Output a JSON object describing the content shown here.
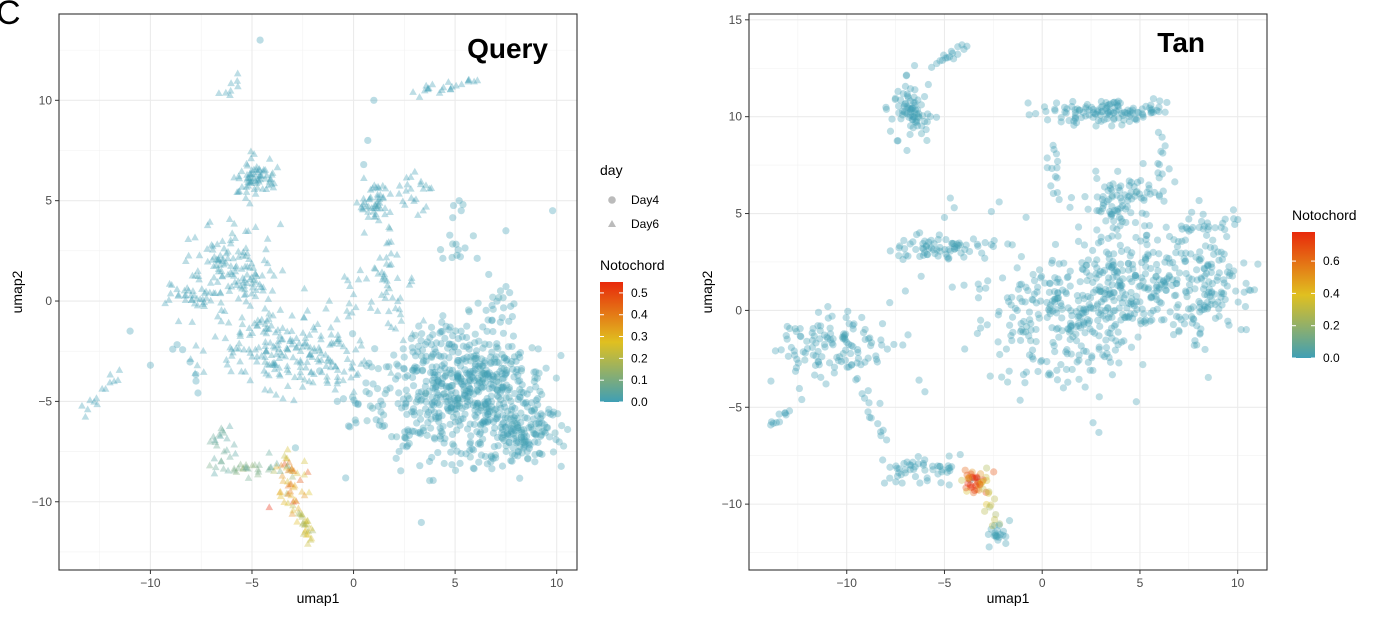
{
  "figure": {
    "panel_letter": "C"
  },
  "chart_data": [
    {
      "type": "scatter",
      "title": "Query",
      "xlabel": "umap1",
      "ylabel": "umap2",
      "xlim": [
        -14.5,
        11.0
      ],
      "ylim": [
        -13.4,
        14.3
      ],
      "xticks": [
        -10,
        -5,
        0,
        5,
        10
      ],
      "yticks": [
        -10,
        -5,
        0,
        5,
        10
      ],
      "grid": true,
      "shape_legend": {
        "title": "day",
        "entries": [
          {
            "label": "Day4",
            "shape": "circle"
          },
          {
            "label": "Day6",
            "shape": "triangle"
          }
        ]
      },
      "color_legend": {
        "title": "Notochord",
        "ticks": [
          0.0,
          0.1,
          0.2,
          0.3,
          0.4,
          0.5
        ],
        "tick_labels": [
          "0.0",
          "0.1",
          "0.2",
          "0.3",
          "0.4",
          "0.5"
        ],
        "range": [
          0,
          0.55
        ]
      },
      "colors": {
        "low": "#3f9fb5",
        "mid": "#e0c020",
        "high": "#e8290b"
      },
      "clusters": [
        {
          "cx": 4.6,
          "cy": -5.0,
          "sx": 2.2,
          "sy": 1.5,
          "n": 420,
          "shape": "circle",
          "value": 0.0
        },
        {
          "cx": 8.2,
          "cy": -6.5,
          "sx": 1.0,
          "sy": 0.8,
          "n": 150,
          "shape": "circle",
          "value": 0.0
        },
        {
          "cx": 6.8,
          "cy": -3.8,
          "sx": 1.3,
          "sy": 0.9,
          "n": 120,
          "shape": "circle",
          "value": 0.0
        },
        {
          "cx": 4.8,
          "cy": -2.5,
          "sx": 1.0,
          "sy": 0.8,
          "n": 70,
          "shape": "circle",
          "value": 0.0
        },
        {
          "cx": 7.0,
          "cy": -0.6,
          "sx": 0.6,
          "sy": 0.7,
          "n": 30,
          "shape": "circle",
          "value": 0.0
        },
        {
          "cx": 5.0,
          "cy": 3.0,
          "sx": 0.4,
          "sy": 1.2,
          "n": 15,
          "shape": "circle",
          "value": 0.0
        },
        {
          "cx": -3.8,
          "cy": -2.3,
          "sx": 1.6,
          "sy": 1.0,
          "n": 160,
          "shape": "triangle",
          "value": 0.0
        },
        {
          "cx": -1.3,
          "cy": -3.4,
          "sx": 1.1,
          "sy": 0.7,
          "n": 60,
          "shape": "triangle",
          "value": 0.0
        },
        {
          "cx": -6.0,
          "cy": 1.6,
          "sx": 1.2,
          "sy": 1.1,
          "n": 140,
          "shape": "triangle",
          "value": 0.0
        },
        {
          "cx": -8.0,
          "cy": 0.2,
          "sx": 0.5,
          "sy": 0.3,
          "n": 25,
          "shape": "triangle",
          "value": 0.0
        },
        {
          "cx": -4.8,
          "cy": 6.2,
          "sx": 0.5,
          "sy": 0.5,
          "n": 70,
          "shape": "triangle",
          "value": 0.0
        },
        {
          "cx": 1.0,
          "cy": 4.8,
          "sx": 0.35,
          "sy": 0.6,
          "n": 45,
          "shape": "triangle",
          "value": 0.0
        },
        {
          "cx": 1.5,
          "cy": 2.0,
          "sx": 0.4,
          "sy": 0.9,
          "n": 25,
          "shape": "triangle",
          "value": 0.0
        },
        {
          "cx": 0.2,
          "cy": 0.2,
          "sx": 0.5,
          "sy": 0.8,
          "n": 15,
          "shape": "triangle",
          "value": 0.0
        },
        {
          "cx": 2.8,
          "cy": 5.4,
          "sx": 0.5,
          "sy": 0.6,
          "n": 25,
          "shape": "triangle",
          "value": 0.0
        },
        {
          "cx": 2.2,
          "cy": -0.5,
          "sx": 0.5,
          "sy": 0.8,
          "n": 20,
          "shape": "triangle",
          "value": 0.0
        },
        {
          "cx": -3.1,
          "cy": -9.1,
          "sx": 0.5,
          "sy": 0.6,
          "n": 50,
          "shape": "triangle",
          "value": 0.3
        },
        {
          "cx": -5.0,
          "cy": -8.4,
          "sx": 0.7,
          "sy": 0.25,
          "n": 30,
          "shape": "triangle",
          "value": 0.08
        },
        {
          "cx": -6.5,
          "cy": -7.2,
          "sx": 0.4,
          "sy": 0.7,
          "n": 20,
          "shape": "triangle",
          "value": 0.05
        }
      ],
      "trails": [
        {
          "x0": -13.3,
          "y0": -5.6,
          "x1": -11.5,
          "y1": -3.5,
          "n": 14,
          "shape": "triangle"
        },
        {
          "x0": -2.6,
          "y0": -10.5,
          "x1": -2.1,
          "y1": -12.0,
          "n": 25,
          "shape": "triangle",
          "value": 0.25
        },
        {
          "x0": 3.0,
          "y0": 10.4,
          "x1": 6.0,
          "y1": 10.9,
          "n": 22,
          "shape": "triangle"
        },
        {
          "x0": -6.5,
          "y0": 10.0,
          "x1": -5.5,
          "y1": 11.3,
          "n": 8,
          "shape": "triangle"
        },
        {
          "x0": -8.5,
          "y0": -2.4,
          "x1": -7.5,
          "y1": -4.3,
          "n": 6,
          "shape": "circle"
        }
      ],
      "stragglers": [
        [
          1.0,
          10.0
        ],
        [
          0.7,
          8.0
        ],
        [
          0.5,
          6.8
        ],
        [
          9.8,
          4.5
        ],
        [
          7.5,
          3.5
        ],
        [
          -4.6,
          13.0
        ],
        [
          -8.9,
          -2.4
        ],
        [
          -11.0,
          -1.5
        ],
        [
          -10.0,
          -3.2
        ],
        [
          -0.8,
          -5.0
        ],
        [
          5.3,
          4.5
        ],
        [
          5.2,
          5.0
        ]
      ]
    },
    {
      "type": "scatter",
      "title": "Tan",
      "xlabel": "umap1",
      "ylabel": "umap2",
      "xlim": [
        -15.0,
        11.5
      ],
      "ylim": [
        -13.4,
        15.3
      ],
      "xticks": [
        -10,
        -5,
        0,
        5,
        10
      ],
      "yticks": [
        -10,
        -5,
        0,
        5,
        10,
        15
      ],
      "grid": true,
      "color_legend": {
        "title": "Notochord",
        "ticks": [
          0.0,
          0.2,
          0.4,
          0.6
        ],
        "tick_labels": [
          "0.0",
          "0.2",
          "0.4",
          "0.6"
        ],
        "range": [
          0,
          0.78
        ]
      },
      "colors": {
        "low": "#3f9fb5",
        "mid": "#e0c020",
        "high": "#e8290b"
      },
      "clusters": [
        {
          "cx": 1.2,
          "cy": -0.6,
          "sx": 2.0,
          "sy": 1.7,
          "n": 260,
          "shape": "circle",
          "value": 0.0
        },
        {
          "cx": 5.0,
          "cy": 1.5,
          "sx": 2.0,
          "sy": 1.2,
          "n": 260,
          "shape": "circle",
          "value": 0.0
        },
        {
          "cx": 8.6,
          "cy": 1.2,
          "sx": 0.8,
          "sy": 1.6,
          "n": 100,
          "shape": "circle",
          "value": 0.0
        },
        {
          "cx": 4.0,
          "cy": 5.6,
          "sx": 1.0,
          "sy": 0.8,
          "n": 90,
          "shape": "circle",
          "value": 0.0
        },
        {
          "cx": 2.6,
          "cy": 10.2,
          "sx": 1.6,
          "sy": 0.3,
          "n": 100,
          "shape": "circle",
          "value": 0.0
        },
        {
          "cx": -10.6,
          "cy": -1.8,
          "sx": 1.4,
          "sy": 0.9,
          "n": 120,
          "shape": "circle",
          "value": 0.0
        },
        {
          "cx": -6.7,
          "cy": 10.3,
          "sx": 0.6,
          "sy": 0.8,
          "n": 80,
          "shape": "circle",
          "value": 0.0
        },
        {
          "cx": -5.5,
          "cy": 3.2,
          "sx": 1.2,
          "sy": 0.3,
          "n": 70,
          "shape": "circle",
          "value": 0.0
        },
        {
          "cx": -6.2,
          "cy": -8.2,
          "sx": 1.0,
          "sy": 0.35,
          "n": 50,
          "shape": "circle",
          "value": 0.0
        },
        {
          "cx": -3.4,
          "cy": -8.8,
          "sx": 0.4,
          "sy": 0.3,
          "n": 40,
          "shape": "circle",
          "value": 0.7
        },
        {
          "cx": -2.4,
          "cy": -11.5,
          "sx": 0.3,
          "sy": 0.4,
          "n": 20,
          "shape": "circle",
          "value": 0.0
        }
      ],
      "trails": [
        {
          "x0": -5.5,
          "y0": 12.5,
          "x1": -4.0,
          "y1": 13.7,
          "n": 16,
          "shape": "circle"
        },
        {
          "x0": 0.5,
          "y0": 8.5,
          "x1": 0.6,
          "y1": 5.8,
          "n": 14,
          "shape": "circle"
        },
        {
          "x0": 4.4,
          "y0": 10.0,
          "x1": 6.2,
          "y1": 10.6,
          "n": 22,
          "shape": "circle"
        },
        {
          "x0": 6.2,
          "y0": 9.0,
          "x1": 6.0,
          "y1": 6.0,
          "n": 12,
          "shape": "circle"
        },
        {
          "x0": -13.8,
          "y0": -5.8,
          "x1": -13.0,
          "y1": -5.3,
          "n": 10,
          "shape": "circle"
        },
        {
          "x0": -9.5,
          "y0": -3.5,
          "x1": -8.0,
          "y1": -6.8,
          "n": 14,
          "shape": "circle"
        },
        {
          "x0": -2.9,
          "y0": -9.2,
          "x1": -2.4,
          "y1": -11.0,
          "n": 12,
          "shape": "circle",
          "value": 0.35
        },
        {
          "x0": 7.0,
          "y0": 4.2,
          "x1": 10.0,
          "y1": 4.6,
          "n": 20,
          "shape": "circle"
        }
      ],
      "stragglers": [
        [
          -4.7,
          5.8
        ],
        [
          -4.5,
          5.3
        ],
        [
          -5.0,
          4.8
        ],
        [
          -2.2,
          5.6
        ],
        [
          -2.6,
          5.1
        ],
        [
          -4.6,
          1.2
        ],
        [
          -4.0,
          1.3
        ],
        [
          -3.2,
          1.1
        ],
        [
          -7.0,
          1.0
        ],
        [
          -7.8,
          0.4
        ],
        [
          -2.5,
          3.3
        ],
        [
          -6.0,
          -4.2
        ],
        [
          -6.3,
          -3.6
        ],
        [
          2.6,
          -5.8
        ],
        [
          2.9,
          -6.3
        ],
        [
          3.1,
          -2.3
        ],
        [
          -12.3,
          -4.6
        ],
        [
          -8.3,
          -4.8
        ]
      ]
    }
  ]
}
